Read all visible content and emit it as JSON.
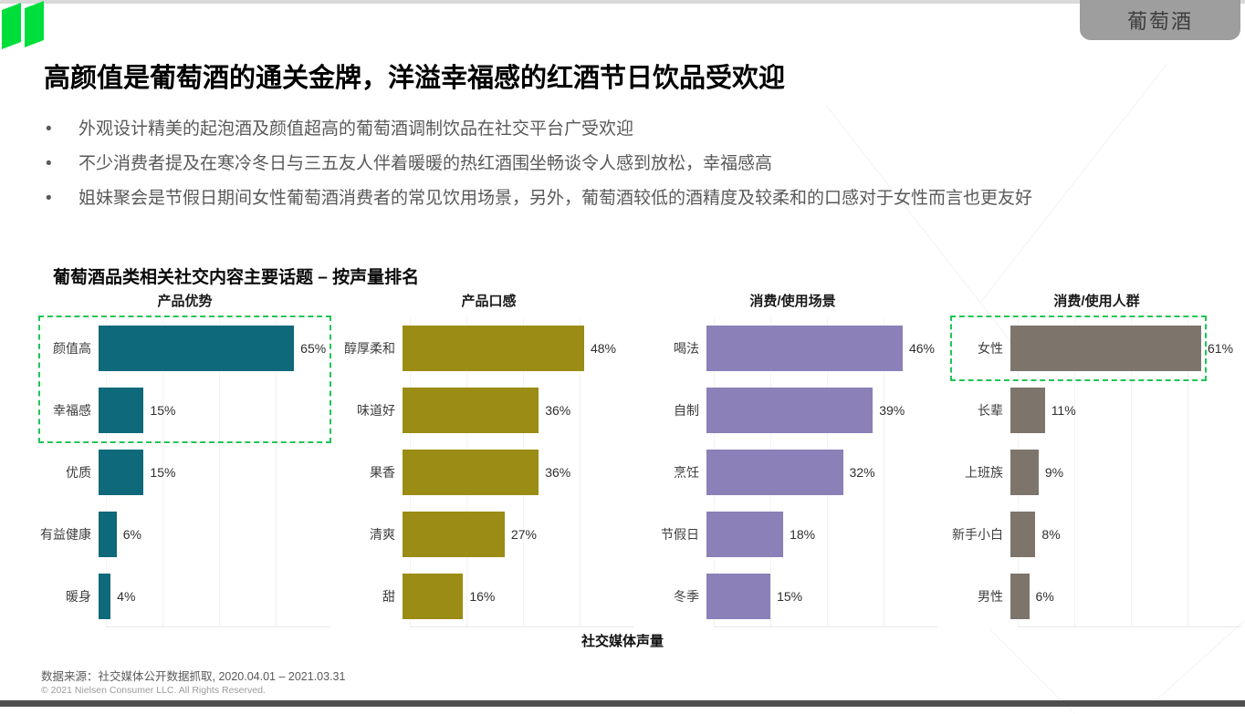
{
  "page": {
    "badge": "葡萄酒",
    "title": "高颜值是葡萄酒的通关金牌，洋溢幸福感的红酒节日饮品受欢迎",
    "bullets": [
      "外观设计精美的起泡酒及颜值超高的葡萄酒调制饮品在社交平台广受欢迎",
      "不少消费者提及在寒冷冬日与三五友人伴着暖暖的热红酒围坐畅谈令人感到放松，幸福感高",
      "姐妹聚会是节假日期间女性葡萄酒消费者的常见饮用场景，另外，葡萄酒较低的酒精度及较柔和的口感对于女性而言也更友好"
    ],
    "section_title": "葡萄酒品类相关社交内容主要话题 – 按声量排名",
    "x_axis_label": "社交媒体声量",
    "source": "数据来源：社交媒体公开数据抓取, 2020.04.01 – 2021.03.31",
    "copyright": "© 2021 Nielsen Consumer LLC. All Rights Reserved."
  },
  "colors": {
    "brand_green": "#00de3c",
    "highlight_green": "#20c556",
    "teal": "#0e697a",
    "olive": "#9a8c14",
    "purple": "#8b80b7",
    "taupe": "#7d756b",
    "badge_bg": "#9e9e9e",
    "bottom_bar": "#4f4f4f"
  },
  "chart_data": [
    {
      "type": "bar",
      "orientation": "horizontal",
      "title": "产品优势",
      "categories": [
        "颜值高",
        "幸福感",
        "优质",
        "有益健康",
        "暖身"
      ],
      "values": [
        65,
        15,
        15,
        6,
        4
      ],
      "unit": "%",
      "color": "#0e697a",
      "axis_max": 78,
      "xlabel": "社交媒体声量",
      "highlight": {
        "rows": [
          0,
          1
        ],
        "right_inset": 0
      }
    },
    {
      "type": "bar",
      "orientation": "horizontal",
      "title": "产品口感",
      "categories": [
        "醇厚柔和",
        "味道好",
        "果香",
        "清爽",
        "甜"
      ],
      "values": [
        48,
        36,
        36,
        27,
        16
      ],
      "unit": "%",
      "color": "#9a8c14",
      "axis_max": 62,
      "xlabel": "社交媒体声量",
      "highlight": null
    },
    {
      "type": "bar",
      "orientation": "horizontal",
      "title": "消费/使用场景",
      "categories": [
        "喝法",
        "自制",
        "烹饪",
        "节假日",
        "冬季"
      ],
      "values": [
        46,
        39,
        32,
        18,
        15
      ],
      "unit": "%",
      "color": "#8b80b7",
      "axis_max": 55,
      "xlabel": "社交媒体声量",
      "highlight": null
    },
    {
      "type": "bar",
      "orientation": "horizontal",
      "title": "消费/使用人群",
      "categories": [
        "女性",
        "长辈",
        "上班族",
        "新手小白",
        "男性"
      ],
      "values": [
        61,
        11,
        9,
        8,
        6
      ],
      "unit": "%",
      "color": "#7d756b",
      "axis_max": 75,
      "xlabel": "社交媒体声量",
      "highlight": {
        "rows": [
          0
        ],
        "right_inset": 40
      }
    }
  ]
}
